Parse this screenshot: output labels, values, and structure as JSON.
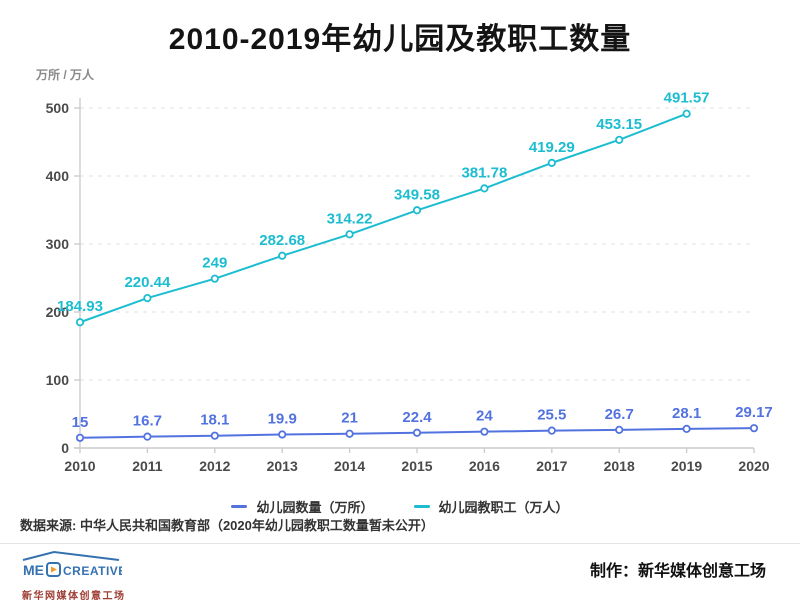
{
  "header": {
    "title": "2010-2019年幼儿园及教职工数量"
  },
  "chart_data": {
    "type": "line",
    "title": "2010-2019年幼儿园及教职工数量",
    "unit_label": "万所 / 万人",
    "categories": [
      "2010",
      "2011",
      "2012",
      "2013",
      "2014",
      "2015",
      "2016",
      "2017",
      "2018",
      "2019",
      "2020"
    ],
    "series": [
      {
        "name": "幼儿园数量（万所）",
        "color": "#5272e0",
        "values": [
          15,
          16.7,
          18.1,
          19.9,
          21,
          22.4,
          24,
          25.5,
          26.7,
          28.1,
          29.17
        ]
      },
      {
        "name": "幼儿园教职工（万人）",
        "color": "#1cbdd0",
        "values": [
          184.93,
          220.44,
          249,
          282.68,
          314.22,
          349.58,
          381.78,
          419.29,
          453.15,
          491.57,
          null
        ]
      }
    ],
    "ylim": [
      0,
      500
    ],
    "yticks": [
      0,
      100,
      200,
      300,
      400,
      500
    ],
    "grid": true,
    "grid_color": "#e2e2e2",
    "axis_color": "#cccccc",
    "tick_label_color": "#4a4a4a",
    "legend_position": "bottom"
  },
  "footer": {
    "source": "数据来源: 中华人民共和国教育部（2020年幼儿园教职工数量暂未公开）",
    "credit": "制作：新华媒体创意工场",
    "logo": {
      "word_left": "ME",
      "word_right": "CREATIVE",
      "subtext": "新华网媒体创意工场",
      "brand_blue": "#3572b0",
      "brand_orange": "#f29a2e"
    }
  }
}
